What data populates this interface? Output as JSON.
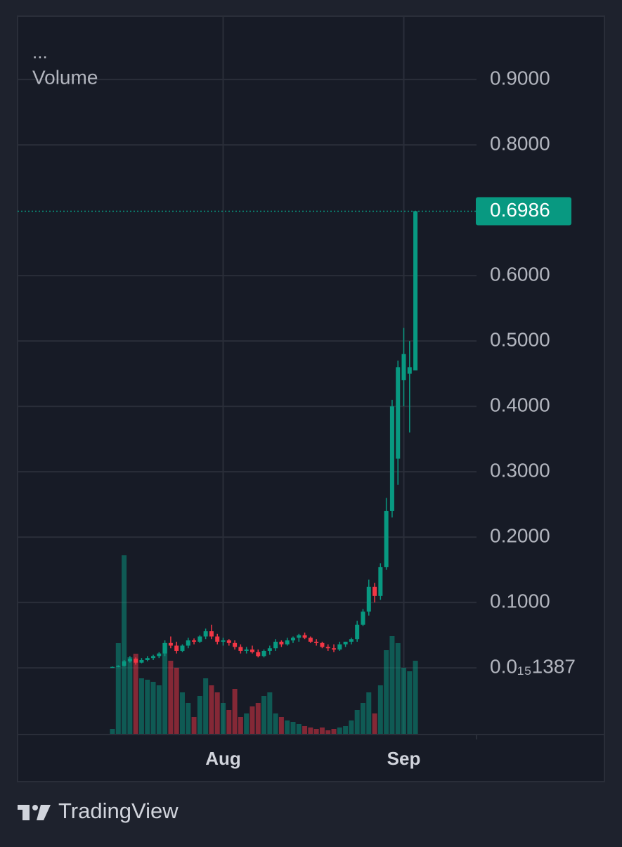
{
  "chart_data": {
    "type": "candlestick",
    "menu": "...",
    "volume_label": "Volume",
    "brand": "TradingView",
    "categories": [
      null,
      null,
      null,
      null,
      null,
      null,
      null,
      null,
      null,
      null,
      null,
      null,
      null,
      null,
      null,
      null,
      null,
      null,
      null,
      "Aug",
      null,
      null,
      null,
      null,
      null,
      null,
      null,
      null,
      null,
      null,
      null,
      null,
      null,
      null,
      null,
      null,
      null,
      null,
      null,
      null,
      null,
      null,
      null,
      null,
      null,
      null,
      null,
      null,
      null,
      null,
      "Sep",
      null,
      null
    ],
    "open": [
      0.001,
      0.0015,
      0.003,
      0.01,
      0.014,
      0.008,
      0.012,
      0.015,
      0.018,
      0.022,
      0.038,
      0.034,
      0.026,
      0.034,
      0.042,
      0.04,
      0.048,
      0.056,
      0.048,
      0.04,
      0.042,
      0.038,
      0.032,
      0.026,
      0.028,
      0.024,
      0.018,
      0.026,
      0.03,
      0.04,
      0.036,
      0.042,
      0.046,
      0.05,
      0.046,
      0.04,
      0.038,
      0.032,
      0.03,
      0.028,
      0.036,
      0.04,
      0.044,
      0.066,
      0.086,
      0.124,
      0.11,
      0.154,
      0.24,
      0.32,
      0.44,
      0.45,
      0.455
    ],
    "high": [
      0.002,
      0.004,
      0.012,
      0.018,
      0.016,
      0.015,
      0.018,
      0.02,
      0.024,
      0.042,
      0.048,
      0.04,
      0.036,
      0.046,
      0.045,
      0.05,
      0.06,
      0.066,
      0.052,
      0.046,
      0.044,
      0.042,
      0.036,
      0.032,
      0.034,
      0.028,
      0.028,
      0.034,
      0.044,
      0.042,
      0.046,
      0.048,
      0.052,
      0.054,
      0.048,
      0.044,
      0.04,
      0.036,
      0.036,
      0.04,
      0.04,
      0.046,
      0.072,
      0.09,
      0.135,
      0.13,
      0.16,
      0.26,
      0.41,
      0.47,
      0.52,
      0.5,
      0.6986
    ],
    "low": [
      0.0005,
      0.001,
      0.002,
      0.008,
      0.005,
      0.007,
      0.01,
      0.012,
      0.015,
      0.018,
      0.03,
      0.022,
      0.024,
      0.03,
      0.036,
      0.038,
      0.044,
      0.044,
      0.036,
      0.034,
      0.034,
      0.028,
      0.022,
      0.022,
      0.022,
      0.016,
      0.016,
      0.02,
      0.026,
      0.032,
      0.034,
      0.038,
      0.04,
      0.044,
      0.038,
      0.034,
      0.03,
      0.026,
      0.024,
      0.026,
      0.032,
      0.036,
      0.04,
      0.064,
      0.08,
      0.1,
      0.104,
      0.15,
      0.23,
      0.28,
      0.4,
      0.36,
      0.455
    ],
    "close": [
      0.0015,
      0.003,
      0.01,
      0.014,
      0.008,
      0.012,
      0.015,
      0.018,
      0.022,
      0.038,
      0.034,
      0.026,
      0.034,
      0.042,
      0.04,
      0.048,
      0.056,
      0.048,
      0.04,
      0.042,
      0.038,
      0.032,
      0.026,
      0.028,
      0.024,
      0.018,
      0.026,
      0.03,
      0.04,
      0.036,
      0.042,
      0.046,
      0.05,
      0.046,
      0.04,
      0.038,
      0.032,
      0.03,
      0.028,
      0.036,
      0.04,
      0.044,
      0.066,
      0.086,
      0.124,
      0.11,
      0.154,
      0.24,
      0.4,
      0.46,
      0.48,
      0.46,
      0.6986
    ],
    "volume": [
      8,
      130,
      255,
      110,
      115,
      80,
      78,
      75,
      70,
      130,
      105,
      95,
      60,
      45,
      25,
      55,
      80,
      70,
      60,
      45,
      35,
      65,
      25,
      30,
      40,
      45,
      55,
      60,
      30,
      25,
      20,
      18,
      15,
      12,
      10,
      8,
      10,
      6,
      8,
      10,
      12,
      20,
      35,
      45,
      60,
      30,
      70,
      120,
      140,
      130,
      95,
      90,
      105
    ],
    "up_color": "#089981",
    "down_color": "#f23645",
    "ylim": [
      -0.102,
      0.998
    ],
    "yticks": [
      {
        "value": 1.387e-16,
        "label": "0.0₁₅1387"
      },
      {
        "value": 0.1,
        "label": "0.1000"
      },
      {
        "value": 0.2,
        "label": "0.2000"
      },
      {
        "value": 0.3,
        "label": "0.3000"
      },
      {
        "value": 0.4,
        "label": "0.4000"
      },
      {
        "value": 0.5,
        "label": "0.5000"
      },
      {
        "value": 0.6,
        "label": "0.6000"
      },
      {
        "value": 0.8,
        "label": "0.8000"
      },
      {
        "value": 0.9,
        "label": "0.9000"
      }
    ],
    "grid": true
  }
}
